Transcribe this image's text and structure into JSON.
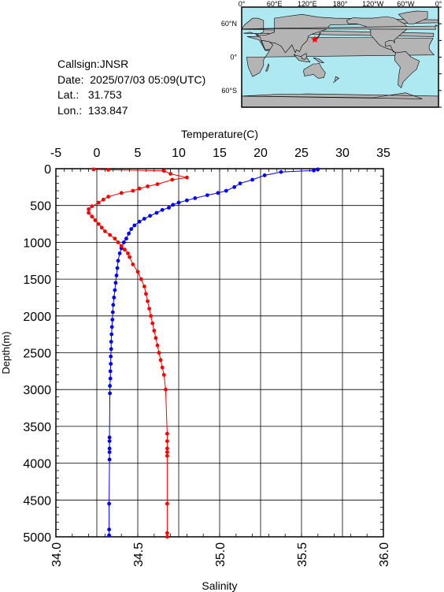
{
  "station": {
    "callsign_line": "Callsign:JNSR",
    "date_line": "Date:  2025/07/03 05:09(UTC)",
    "lat_line": "Lat.:   31.753",
    "lon_line": "Lon.:  133.847"
  },
  "map": {
    "top_labels": [
      "0°",
      "60°E",
      "120°E",
      "180°",
      "120°W",
      "60°W",
      "0°"
    ],
    "side_labels": [
      "60°N",
      "0°",
      "60°S"
    ],
    "ocean_color": "#aee8f0",
    "land_color": "#b4b4b4",
    "marker_color": "#ff0000",
    "station_lat": 31.753,
    "station_lon": 133.847
  },
  "chart_data": {
    "type": "scatter",
    "top_axis_label": "Temperature(C)",
    "bottom_axis_label": "Salinity",
    "y_axis_label": "Depth(m)",
    "temperature_ticks": [
      "-5",
      "0",
      "5",
      "10",
      "15",
      "20",
      "25",
      "30",
      "35"
    ],
    "salinity_ticks": [
      "34.0",
      "34.5",
      "35.0",
      "35.5",
      "36.0"
    ],
    "depth_ticks": [
      "0",
      "500",
      "1000",
      "1500",
      "2000",
      "2500",
      "3000",
      "3500",
      "4000",
      "4500",
      "5000"
    ],
    "temperature_range": [
      -5,
      35
    ],
    "salinity_range": [
      34.0,
      36.0
    ],
    "depth_range": [
      0,
      5000
    ],
    "grid": true,
    "series": [
      {
        "color": "#0000ff",
        "axis": "temperature",
        "points": [
          [
            27.0,
            10
          ],
          [
            26.5,
            25
          ],
          [
            22.5,
            45
          ],
          [
            20.5,
            90
          ],
          [
            19.0,
            150
          ],
          [
            17.5,
            200
          ],
          [
            16.8,
            250
          ],
          [
            15.8,
            300
          ],
          [
            14.8,
            330
          ],
          [
            13.5,
            360
          ],
          [
            12.0,
            400
          ],
          [
            11.0,
            430
          ],
          [
            10.0,
            460
          ],
          [
            9.3,
            490
          ],
          [
            8.8,
            530
          ],
          [
            8.0,
            560
          ],
          [
            7.3,
            600
          ],
          [
            6.5,
            640
          ],
          [
            5.8,
            680
          ],
          [
            5.2,
            720
          ],
          [
            4.6,
            770
          ],
          [
            4.2,
            820
          ],
          [
            3.9,
            880
          ],
          [
            3.6,
            950
          ],
          [
            3.3,
            1000
          ],
          [
            3.0,
            1080
          ],
          [
            2.8,
            1150
          ],
          [
            2.6,
            1250
          ],
          [
            2.5,
            1350
          ],
          [
            2.4,
            1450
          ],
          [
            2.3,
            1550
          ],
          [
            2.2,
            1650
          ],
          [
            2.1,
            1750
          ],
          [
            2.0,
            1850
          ],
          [
            1.95,
            1950
          ],
          [
            1.9,
            2050
          ],
          [
            1.85,
            2150
          ],
          [
            1.8,
            2250
          ],
          [
            1.75,
            2350
          ],
          [
            1.75,
            2450
          ],
          [
            1.7,
            2550
          ],
          [
            1.7,
            2650
          ],
          [
            1.65,
            2750
          ],
          [
            1.65,
            2850
          ],
          [
            1.6,
            2950
          ],
          [
            1.6,
            3050
          ],
          [
            1.55,
            3650
          ],
          [
            1.55,
            3700
          ],
          [
            1.55,
            3800
          ],
          [
            1.55,
            3850
          ],
          [
            1.55,
            3950
          ],
          [
            1.5,
            4550
          ],
          [
            1.5,
            4900
          ],
          [
            1.5,
            4980
          ]
        ]
      },
      {
        "color": "#ff0000",
        "axis": "salinity",
        "points": [
          [
            34.23,
            10
          ],
          [
            34.32,
            15
          ],
          [
            34.66,
            30
          ],
          [
            34.7,
            70
          ],
          [
            34.8,
            120
          ],
          [
            34.71,
            150
          ],
          [
            34.62,
            210
          ],
          [
            34.56,
            240
          ],
          [
            34.51,
            270
          ],
          [
            34.47,
            300
          ],
          [
            34.4,
            330
          ],
          [
            34.32,
            380
          ],
          [
            34.29,
            420
          ],
          [
            34.26,
            460
          ],
          [
            34.22,
            510
          ],
          [
            34.2,
            550
          ],
          [
            34.2,
            600
          ],
          [
            34.22,
            650
          ],
          [
            34.24,
            700
          ],
          [
            34.26,
            750
          ],
          [
            34.28,
            800
          ],
          [
            34.3,
            850
          ],
          [
            34.33,
            900
          ],
          [
            34.36,
            950
          ],
          [
            34.38,
            1000
          ],
          [
            34.4,
            1050
          ],
          [
            34.42,
            1100
          ],
          [
            34.44,
            1150
          ],
          [
            34.45,
            1200
          ],
          [
            34.47,
            1300
          ],
          [
            34.5,
            1400
          ],
          [
            34.52,
            1500
          ],
          [
            34.54,
            1600
          ],
          [
            34.55,
            1700
          ],
          [
            34.56,
            1800
          ],
          [
            34.57,
            1900
          ],
          [
            34.58,
            2000
          ],
          [
            34.59,
            2100
          ],
          [
            34.6,
            2200
          ],
          [
            34.61,
            2300
          ],
          [
            34.62,
            2400
          ],
          [
            34.63,
            2500
          ],
          [
            34.64,
            2600
          ],
          [
            34.65,
            2700
          ],
          [
            34.66,
            2800
          ],
          [
            34.67,
            3000
          ],
          [
            34.68,
            3600
          ],
          [
            34.68,
            3700
          ],
          [
            34.68,
            3800
          ],
          [
            34.68,
            3850
          ],
          [
            34.68,
            3900
          ],
          [
            34.68,
            4550
          ],
          [
            34.68,
            4950
          ],
          [
            34.68,
            5000
          ]
        ]
      }
    ]
  }
}
